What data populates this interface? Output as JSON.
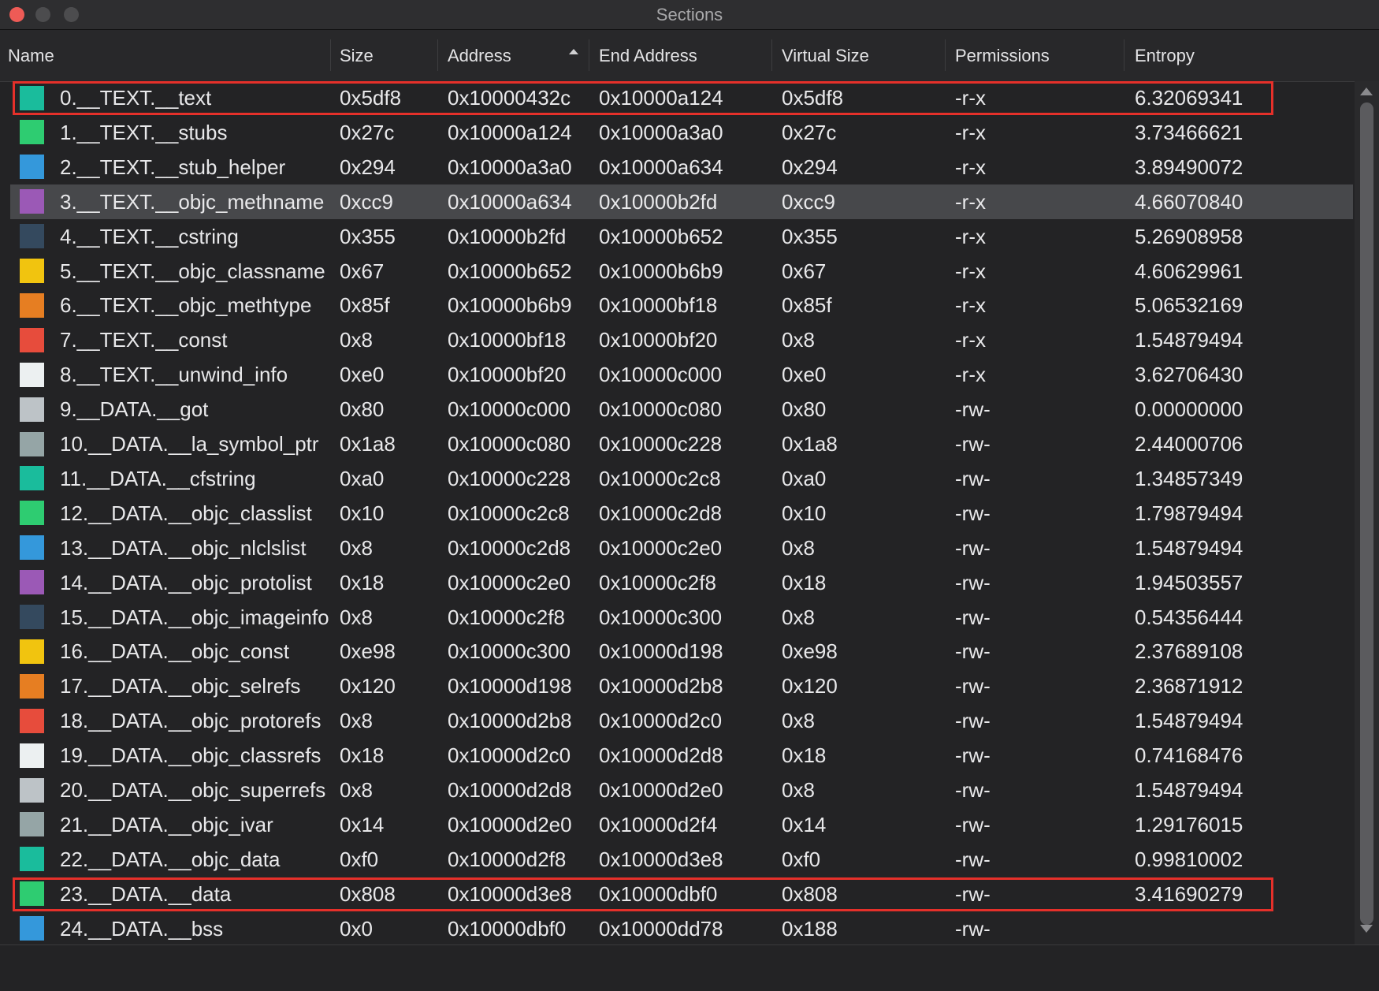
{
  "window": {
    "title": "Sections"
  },
  "table": {
    "headers": [
      "Name",
      "Size",
      "Address",
      "End Address",
      "Virtual Size",
      "Permissions",
      "Entropy"
    ],
    "swatch_colors": [
      "#1abc9c",
      "#2ecc71",
      "#3498db",
      "#9b59b6",
      "#34495e",
      "#f1c40f",
      "#e67e22",
      "#e74c3c",
      "#ecf0f1",
      "#bdc3c7",
      "#95a5a6"
    ],
    "rows": [
      [
        "0.__TEXT.__text",
        "0x5df8",
        "0x10000432c",
        "0x10000a124",
        "0x5df8",
        "-r-x",
        "6.32069341"
      ],
      [
        "1.__TEXT.__stubs",
        "0x27c",
        "0x10000a124",
        "0x10000a3a0",
        "0x27c",
        "-r-x",
        "3.73466621"
      ],
      [
        "2.__TEXT.__stub_helper",
        "0x294",
        "0x10000a3a0",
        "0x10000a634",
        "0x294",
        "-r-x",
        "3.89490072"
      ],
      [
        "3.__TEXT.__objc_methname",
        "0xcc9",
        "0x10000a634",
        "0x10000b2fd",
        "0xcc9",
        "-r-x",
        "4.66070840"
      ],
      [
        "4.__TEXT.__cstring",
        "0x355",
        "0x10000b2fd",
        "0x10000b652",
        "0x355",
        "-r-x",
        "5.26908958"
      ],
      [
        "5.__TEXT.__objc_classname",
        "0x67",
        "0x10000b652",
        "0x10000b6b9",
        "0x67",
        "-r-x",
        "4.60629961"
      ],
      [
        "6.__TEXT.__objc_methtype",
        "0x85f",
        "0x10000b6b9",
        "0x10000bf18",
        "0x85f",
        "-r-x",
        "5.06532169"
      ],
      [
        "7.__TEXT.__const",
        "0x8",
        "0x10000bf18",
        "0x10000bf20",
        "0x8",
        "-r-x",
        "1.54879494"
      ],
      [
        "8.__TEXT.__unwind_info",
        "0xe0",
        "0x10000bf20",
        "0x10000c000",
        "0xe0",
        "-r-x",
        "3.62706430"
      ],
      [
        "9.__DATA.__got",
        "0x80",
        "0x10000c000",
        "0x10000c080",
        "0x80",
        "-rw-",
        "0.00000000"
      ],
      [
        "10.__DATA.__la_symbol_ptr",
        "0x1a8",
        "0x10000c080",
        "0x10000c228",
        "0x1a8",
        "-rw-",
        "2.44000706"
      ],
      [
        "11.__DATA.__cfstring",
        "0xa0",
        "0x10000c228",
        "0x10000c2c8",
        "0xa0",
        "-rw-",
        "1.34857349"
      ],
      [
        "12.__DATA.__objc_classlist",
        "0x10",
        "0x10000c2c8",
        "0x10000c2d8",
        "0x10",
        "-rw-",
        "1.79879494"
      ],
      [
        "13.__DATA.__objc_nlclslist",
        "0x8",
        "0x10000c2d8",
        "0x10000c2e0",
        "0x8",
        "-rw-",
        "1.54879494"
      ],
      [
        "14.__DATA.__objc_protolist",
        "0x18",
        "0x10000c2e0",
        "0x10000c2f8",
        "0x18",
        "-rw-",
        "1.94503557"
      ],
      [
        "15.__DATA.__objc_imageinfo",
        "0x8",
        "0x10000c2f8",
        "0x10000c300",
        "0x8",
        "-rw-",
        "0.54356444"
      ],
      [
        "16.__DATA.__objc_const",
        "0xe98",
        "0x10000c300",
        "0x10000d198",
        "0xe98",
        "-rw-",
        "2.37689108"
      ],
      [
        "17.__DATA.__objc_selrefs",
        "0x120",
        "0x10000d198",
        "0x10000d2b8",
        "0x120",
        "-rw-",
        "2.36871912"
      ],
      [
        "18.__DATA.__objc_protorefs",
        "0x8",
        "0x10000d2b8",
        "0x10000d2c0",
        "0x8",
        "-rw-",
        "1.54879494"
      ],
      [
        "19.__DATA.__objc_classrefs",
        "0x18",
        "0x10000d2c0",
        "0x10000d2d8",
        "0x18",
        "-rw-",
        "0.74168476"
      ],
      [
        "20.__DATA.__objc_superrefs",
        "0x8",
        "0x10000d2d8",
        "0x10000d2e0",
        "0x8",
        "-rw-",
        "1.54879494"
      ],
      [
        "21.__DATA.__objc_ivar",
        "0x14",
        "0x10000d2e0",
        "0x10000d2f4",
        "0x14",
        "-rw-",
        "1.29176015"
      ],
      [
        "22.__DATA.__objc_data",
        "0xf0",
        "0x10000d2f8",
        "0x10000d3e8",
        "0xf0",
        "-rw-",
        "0.99810002"
      ],
      [
        "23.__DATA.__data",
        "0x808",
        "0x10000d3e8",
        "0x10000dbf0",
        "0x808",
        "-rw-",
        "3.41690279"
      ],
      [
        "24.__DATA.__bss",
        "0x0",
        "0x10000dbf0",
        "0x10000dd78",
        "0x188",
        "-rw-"
      ]
    ],
    "selected_row": 3,
    "outlined_rows": [
      0,
      23
    ]
  }
}
